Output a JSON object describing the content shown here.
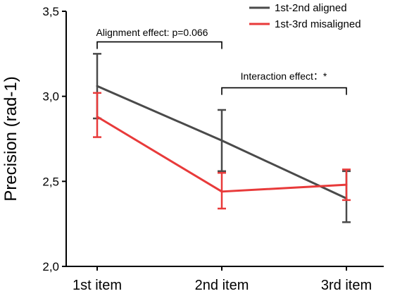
{
  "chart_data": {
    "type": "line",
    "categories": [
      "1st item",
      "2nd item",
      "3rd item"
    ],
    "ylabel": "Precision (rad-1)",
    "ylim": [
      2.0,
      3.5
    ],
    "yticks": [
      "2,0",
      "2,5",
      "3,0",
      "3,5"
    ],
    "yticks_values": [
      2.0,
      2.5,
      3.0,
      3.5
    ],
    "series": [
      {
        "name": "1st-2nd aligned",
        "color": "#4a4a4a",
        "values": [
          3.06,
          2.74,
          2.4
        ],
        "err_low": [
          2.87,
          2.56,
          2.26
        ],
        "err_high": [
          3.25,
          2.92,
          2.56
        ]
      },
      {
        "name": "1st-3rd misaligned",
        "color": "#e83a3a",
        "values": [
          2.88,
          2.44,
          2.48
        ],
        "err_low": [
          2.76,
          2.34,
          2.39
        ],
        "err_high": [
          3.02,
          2.55,
          2.57
        ]
      }
    ],
    "annotations": [
      {
        "text": "Alignment effect: p=0.066",
        "from": 0,
        "to": 1,
        "level": 3.32
      },
      {
        "text": "Interaction effect：*",
        "from": 1,
        "to": 2,
        "level": 3.05
      }
    ],
    "legend_position": "top-right",
    "grid": false
  }
}
